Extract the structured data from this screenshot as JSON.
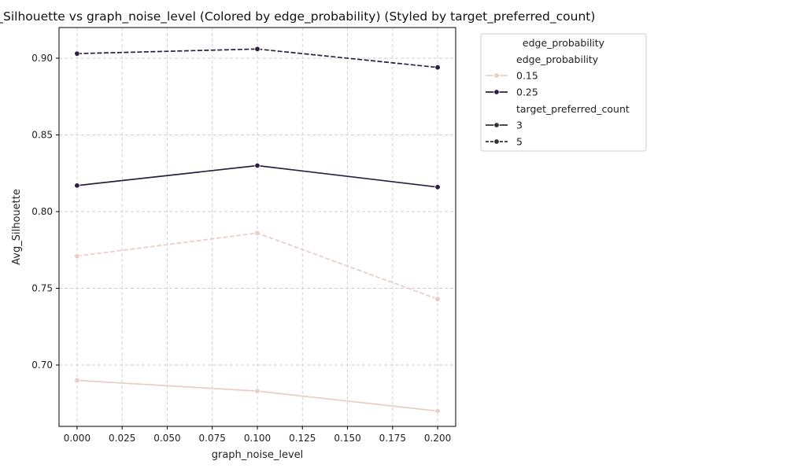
{
  "chart_data": {
    "type": "line",
    "title": "Avg_Silhouette vs graph_noise_level (Colored by edge_probability) (Styled by target_preferred_count)",
    "xlabel": "graph_noise_level",
    "ylabel": "Avg_Silhouette",
    "xlim": [
      -0.01,
      0.21
    ],
    "ylim": [
      0.66,
      0.92
    ],
    "xticks": [
      "0.000",
      "0.025",
      "0.050",
      "0.075",
      "0.100",
      "0.125",
      "0.150",
      "0.175",
      "0.200"
    ],
    "yticks": [
      "0.70",
      "0.75",
      "0.80",
      "0.85",
      "0.90"
    ],
    "grid": true,
    "legend_placement": "outside-right-top",
    "x": [
      0.0,
      0.1,
      0.2
    ],
    "series": [
      {
        "edge_probability": "0.15",
        "target_preferred_count": "3",
        "color": "#ebcdc7",
        "dash": "solid",
        "values": [
          0.69,
          0.683,
          0.67
        ]
      },
      {
        "edge_probability": "0.15",
        "target_preferred_count": "5",
        "color": "#ebcdc7",
        "dash": "dashed",
        "values": [
          0.771,
          0.786,
          0.743
        ]
      },
      {
        "edge_probability": "0.25",
        "target_preferred_count": "3",
        "color": "#2d1e3e",
        "dash": "solid",
        "values": [
          0.817,
          0.83,
          0.816
        ]
      },
      {
        "edge_probability": "0.25",
        "target_preferred_count": "5",
        "color": "#2d1e3e",
        "dash": "dashed",
        "values": [
          0.903,
          0.906,
          0.894
        ]
      }
    ],
    "legend": {
      "title": "edge_probability",
      "hue_header": "edge_probability",
      "hue_entries": [
        {
          "label": "0.15",
          "color": "#ebcdc7"
        },
        {
          "label": "0.25",
          "color": "#2d1e3e"
        }
      ],
      "style_header": "target_preferred_count",
      "style_entries": [
        {
          "label": "3",
          "dash": "solid"
        },
        {
          "label": "5",
          "dash": "dashed"
        }
      ]
    }
  }
}
